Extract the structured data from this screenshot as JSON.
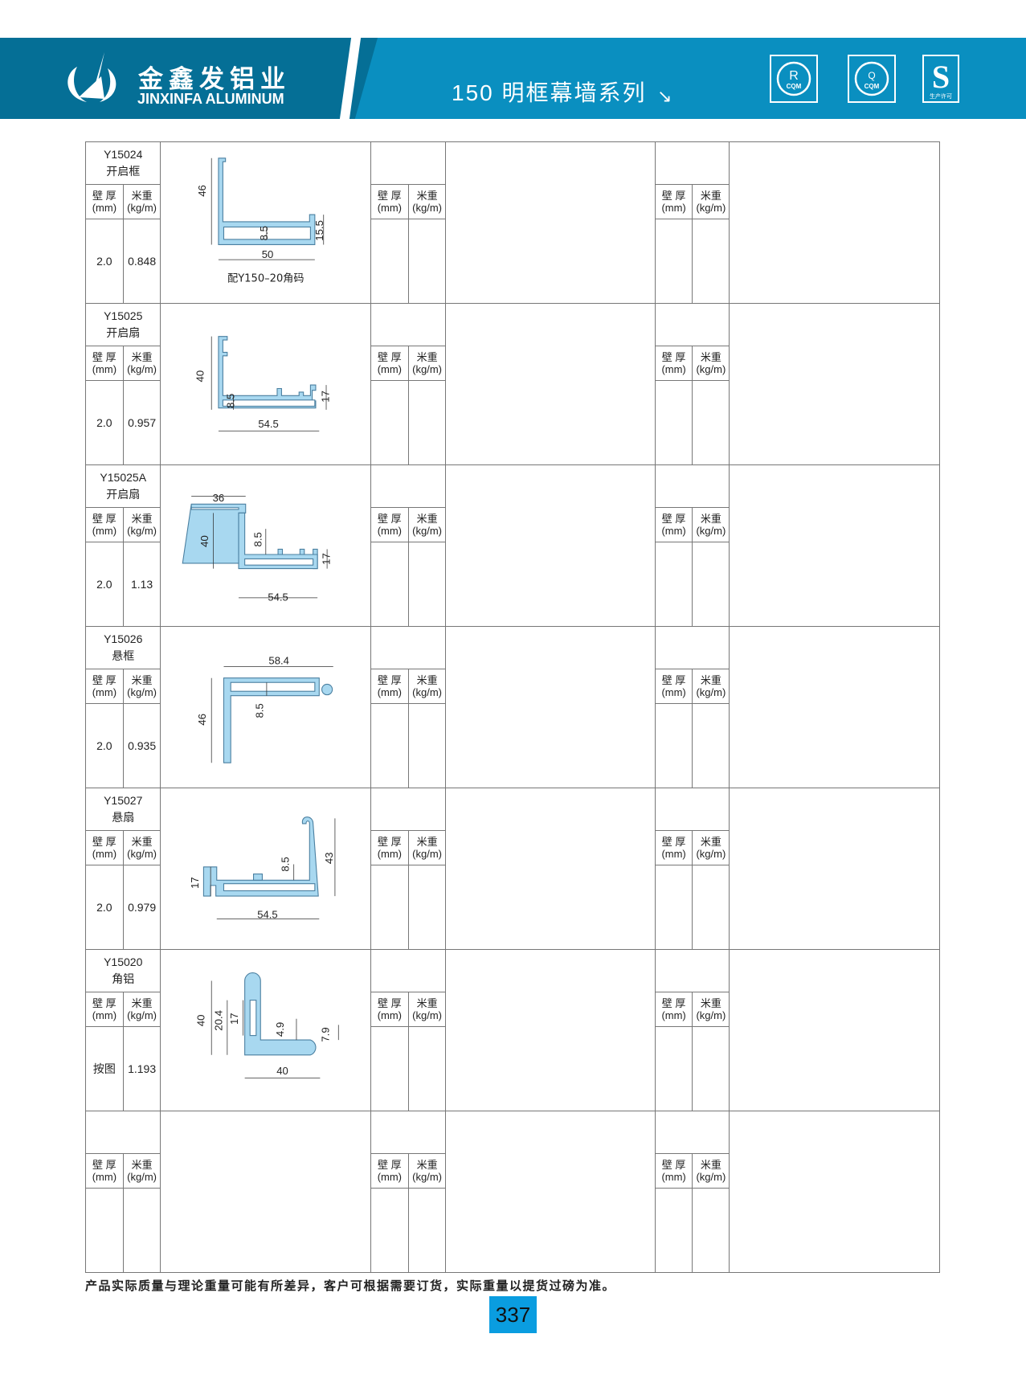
{
  "header": {
    "brand_cn": "金鑫发铝业",
    "brand_en": "JINXINFA ALUMINUM",
    "series": "150 明框幕墙系列",
    "arrow": "↘",
    "certs": [
      {
        "icon": "cqm-r-icon",
        "text": "CQM",
        "letter": "R"
      },
      {
        "icon": "cqm-q-icon",
        "text": "CQM",
        "letter": "Q"
      },
      {
        "icon": "qs-production-license-icon",
        "text": "生产许可",
        "letter": "S"
      }
    ],
    "colors": {
      "dark": "#056f96",
      "main": "#0a8fc0",
      "profile": "#a8d8f0"
    }
  },
  "labels": {
    "thk": "壁 厚",
    "thk_unit": "(mm)",
    "wt": "米重",
    "wt_unit": "(kg/m)"
  },
  "rows": [
    {
      "code": "Y15024",
      "name": "开启框",
      "thk": "2.0",
      "wt": "0.848",
      "dims": [
        "46",
        "8.5",
        "15.5",
        "50"
      ],
      "note": "配Y150–20角码"
    },
    {
      "code": "Y15025",
      "name": "开启扇",
      "thk": "2.0",
      "wt": "0.957",
      "dims": [
        "40",
        "8.5",
        "17",
        "54.5"
      ],
      "note": ""
    },
    {
      "code": "Y15025A",
      "name": "开启扇",
      "thk": "2.0",
      "wt": "1.13",
      "dims": [
        "36",
        "40",
        "8.5",
        "17",
        "54.5"
      ],
      "note": ""
    },
    {
      "code": "Y15026",
      "name": "悬框",
      "thk": "2.0",
      "wt": "0.935",
      "dims": [
        "58.4",
        "46",
        "8.5"
      ],
      "note": ""
    },
    {
      "code": "Y15027",
      "name": "悬扇",
      "thk": "2.0",
      "wt": "0.979",
      "dims": [
        "43",
        "17",
        "8.5",
        "54.5"
      ],
      "note": ""
    },
    {
      "code": "Y15020",
      "name": "角铝",
      "thk": "按图",
      "wt": "1.193",
      "dims": [
        "40",
        "20.4",
        "17",
        "4.9",
        "7.9",
        "40"
      ],
      "note": ""
    },
    {
      "code": "",
      "name": "",
      "thk": "",
      "wt": "",
      "dims": [],
      "note": ""
    }
  ],
  "footer": {
    "disclaimer": "产品实际质量与理论重量可能有所差异，客户可根据需要订货，实际重量以提货过磅为准。",
    "page": "337"
  }
}
